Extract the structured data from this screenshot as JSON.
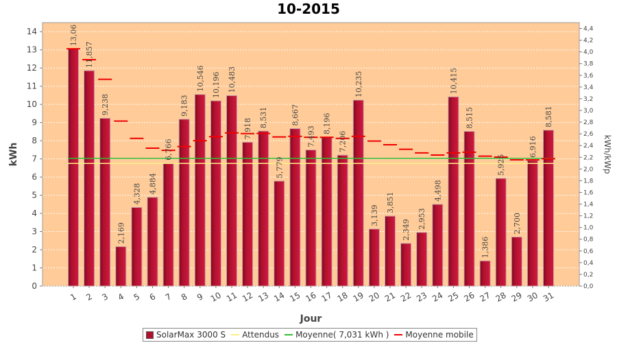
{
  "chart_data": {
    "type": "bar",
    "title": "10-2015",
    "xlabel": "Jour",
    "ylabel": "kWh",
    "y2label": "kWh/kWp",
    "ylim": [
      0,
      14.5
    ],
    "y2lim": [
      0,
      4.5
    ],
    "yticks": [
      "0",
      "1",
      "2",
      "3",
      "4",
      "5",
      "6",
      "7",
      "8",
      "9",
      "10",
      "11",
      "12",
      "13",
      "14"
    ],
    "y2ticks": [
      "0,0",
      "0,2",
      "0,4",
      "0,6",
      "0,8",
      "1,0",
      "1,2",
      "1,4",
      "1,6",
      "1,8",
      "2,0",
      "2,2",
      "2,4",
      "2,6",
      "2,8",
      "3,0",
      "3,2",
      "3,4",
      "3,6",
      "3,8",
      "4,0",
      "4,2",
      "4,4"
    ],
    "categories": [
      "1",
      "2",
      "3",
      "4",
      "5",
      "6",
      "7",
      "8",
      "9",
      "10",
      "11",
      "12",
      "13",
      "14",
      "15",
      "16",
      "17",
      "18",
      "19",
      "20",
      "21",
      "22",
      "23",
      "24",
      "25",
      "26",
      "27",
      "28",
      "29",
      "30",
      "31"
    ],
    "series": [
      {
        "name": "SolarMax 3000 S",
        "kind": "bar",
        "color": "#b0102e",
        "values": [
          13.06,
          11.857,
          9.238,
          2.169,
          4.328,
          4.884,
          6.766,
          9.183,
          10.546,
          10.196,
          10.483,
          7.918,
          8.531,
          5.779,
          8.667,
          7.493,
          8.196,
          7.206,
          10.235,
          3.139,
          3.851,
          2.349,
          2.953,
          4.498,
          10.415,
          8.515,
          1.386,
          5.925,
          2.7,
          6.916,
          8.581
        ],
        "labels": [
          "13,06",
          "11,857",
          "9,238",
          "2,169",
          "4,328",
          "4,884",
          "6,766",
          "9,183",
          "10,546",
          "10,196",
          "10,483",
          "7,918",
          "8,531",
          "5,779",
          "8,667",
          "7,493",
          "8,196",
          "7,206",
          "10,235",
          "3,139",
          "3,851",
          "2,349",
          "2,953",
          "4,498",
          "10,415",
          "8,515",
          "1,386",
          "5,925",
          "2,700",
          "6,916",
          "8,581"
        ]
      },
      {
        "name": "Attendus",
        "kind": "line",
        "color": "#ffee88",
        "values": [
          6.75,
          6.75,
          6.75,
          6.75,
          6.75,
          6.75,
          6.75,
          6.75,
          6.75,
          6.75,
          6.75,
          6.75,
          6.75,
          6.75,
          6.75,
          6.75,
          6.75,
          6.75,
          6.75,
          6.75,
          6.75,
          6.75,
          6.75,
          6.75,
          6.75,
          6.75,
          6.75,
          6.75,
          6.75,
          6.75,
          6.75
        ]
      },
      {
        "name": "Moyenne( 7,031 kWh )",
        "kind": "line",
        "color": "#33bb33",
        "value": 7.031
      },
      {
        "name": "Moyenne mobile",
        "kind": "dash",
        "color": "#ee0000",
        "values": [
          13.06,
          12.46,
          11.38,
          9.08,
          8.13,
          7.59,
          7.47,
          7.68,
          8.0,
          8.22,
          8.43,
          8.39,
          8.4,
          8.21,
          8.24,
          8.19,
          8.19,
          8.13,
          8.24,
          7.98,
          7.78,
          7.53,
          7.33,
          7.21,
          7.33,
          7.37,
          7.15,
          7.1,
          6.95,
          6.95,
          7.01
        ]
      }
    ],
    "legend_position": "bottom",
    "plot_background": "#ffcc99",
    "grid": true
  },
  "legend": [
    {
      "label": "SolarMax 3000 S",
      "color": "#b0102e",
      "kind": "box"
    },
    {
      "label": "Attendus",
      "color": "#ffee88",
      "kind": "line"
    },
    {
      "label": "Moyenne( 7,031 kWh )",
      "color": "#33bb33",
      "kind": "line"
    },
    {
      "label": "Moyenne mobile",
      "color": "#ee0000",
      "kind": "line"
    }
  ]
}
